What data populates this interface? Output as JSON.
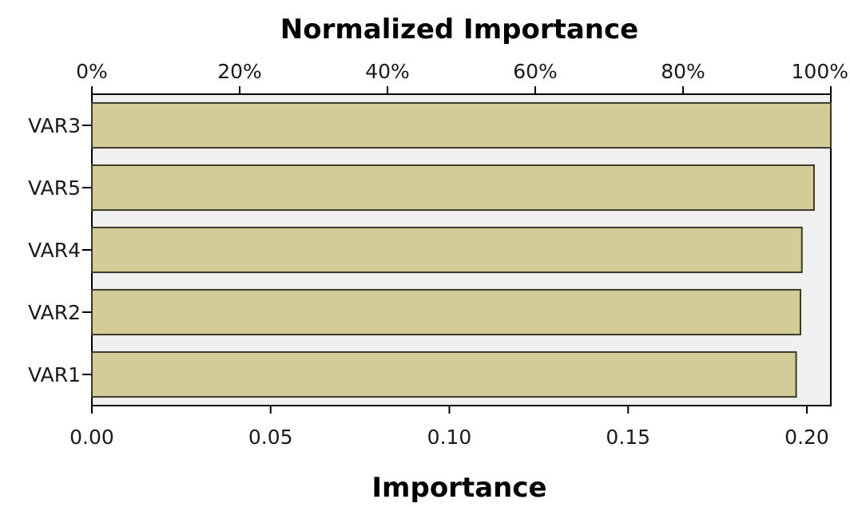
{
  "chart_data": {
    "type": "bar",
    "orientation": "horizontal",
    "categories": [
      "VAR3",
      "VAR5",
      "VAR4",
      "VAR2",
      "VAR1"
    ],
    "values": [
      0.2067,
      0.202,
      0.1986,
      0.1982,
      0.197
    ],
    "normalized_importance": [
      1.0,
      0.977,
      0.961,
      0.959,
      0.953
    ],
    "xlabel_bottom": "Importance",
    "xlabel_top": "Normalized Importance",
    "bottom_ticks": [
      "0.00",
      "0.05",
      "0.10",
      "0.15",
      "0.20"
    ],
    "bottom_tick_values": [
      0.0,
      0.05,
      0.1,
      0.15,
      0.2
    ],
    "top_ticks": [
      "0%",
      "20%",
      "40%",
      "60%",
      "80%",
      "100%"
    ],
    "top_tick_values": [
      0,
      20,
      40,
      60,
      80,
      100
    ],
    "xlim": [
      0,
      0.2067
    ],
    "grid": false,
    "legend": "none",
    "colors": {
      "bar_fill": "#d3cc98",
      "bar_stroke": "#3a3a2a",
      "plot_background": "#f0f0f0",
      "axis": "#000000"
    }
  }
}
